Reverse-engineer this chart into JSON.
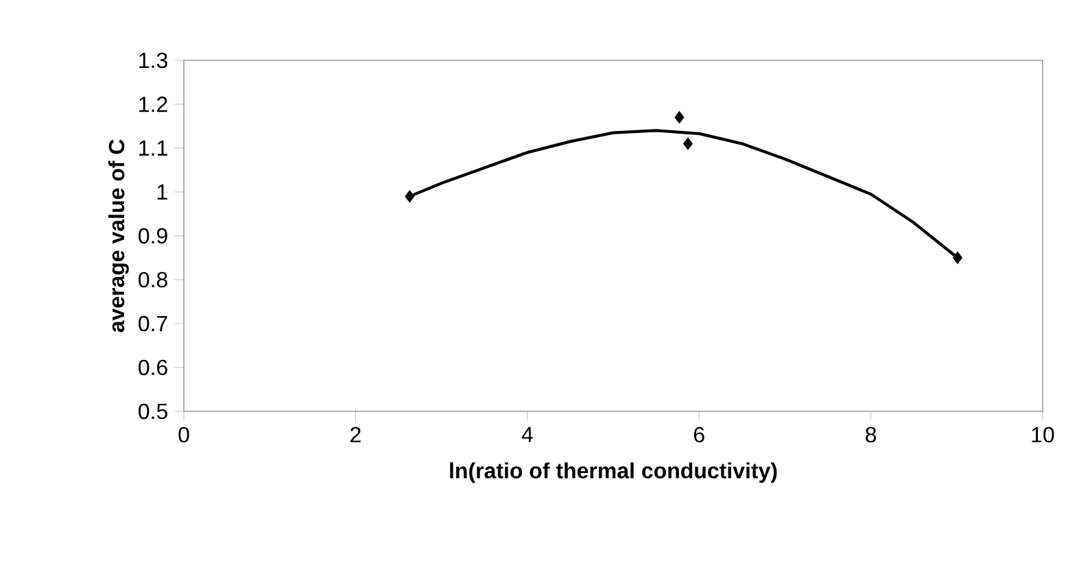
{
  "chart_data": {
    "type": "scatter",
    "xlabel": "ln(ratio of thermal conductivity)",
    "ylabel": "average value of C",
    "xlim": [
      0,
      10
    ],
    "xticks": [
      0,
      2,
      4,
      6,
      8,
      10
    ],
    "ylim": [
      0.5,
      1.3
    ],
    "yticks": [
      0.5,
      0.6,
      0.7,
      0.8,
      0.9,
      1,
      1.1,
      1.2,
      1.3
    ],
    "marker": "diamond",
    "series": [
      {
        "color": "#000000",
        "x": [
          2.63,
          5.77,
          5.87,
          9.01
        ],
        "values": [
          0.99,
          1.17,
          1.11,
          0.85
        ]
      },
      {
        "type": "line",
        "color": "#000000",
        "marker": "none",
        "line_style": "solid",
        "x": [
          2.63,
          3.0,
          3.5,
          4.0,
          4.5,
          5.0,
          5.5,
          6.0,
          6.5,
          7.0,
          7.5,
          8.0,
          8.5,
          9.01
        ],
        "values": [
          0.99,
          1.02,
          1.055,
          1.09,
          1.115,
          1.135,
          1.14,
          1.133,
          1.11,
          1.075,
          1.035,
          0.995,
          0.93,
          0.85
        ]
      }
    ]
  }
}
